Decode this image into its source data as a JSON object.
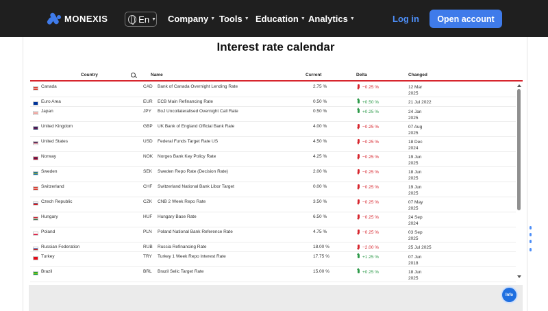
{
  "nav": {
    "brand": "MONEXIS",
    "lang": "En",
    "menu": [
      "Company",
      "Tools",
      "Education",
      "Analytics"
    ],
    "login": "Log in",
    "open_account": "Open account"
  },
  "page": {
    "title": "Interest rate calendar",
    "info": "Info"
  },
  "table": {
    "columns": {
      "country": "Country",
      "name": "Name",
      "current": "Current",
      "delta": "Delta",
      "changed": "Changed"
    },
    "rows": [
      {
        "country": "Canada",
        "code": "CAD",
        "name": "Bank of Canada Overnight Lending Rate",
        "current": "2.75 %",
        "delta": "−0.25 %",
        "dir": "down",
        "changed": [
          "12 Mar",
          "2025"
        ],
        "flag": [
          "#d52b1e",
          "#ffffff",
          "#d52b1e"
        ]
      },
      {
        "country": "Euro Area",
        "code": "EUR",
        "name": "ECB Main Refinancing Rate",
        "current": "0.50 %",
        "delta": "+0.50 %",
        "dir": "up",
        "changed": [
          "21 Jul 2022"
        ],
        "flag": [
          "#003399",
          "#003399",
          "#003399"
        ]
      },
      {
        "country": "Japan",
        "code": "JPY",
        "name": "BoJ Uncollateralised Overnight Call Rate",
        "current": "0.50 %",
        "delta": "+0.25 %",
        "dir": "up",
        "changed": [
          "24 Jan",
          "2025"
        ],
        "flag": [
          "#ffffff",
          "#d52b1e",
          "#ffffff"
        ]
      },
      {
        "country": "United Kingdom",
        "code": "GBP",
        "name": "UK Bank of England Official Bank Rate",
        "current": "4.00 %",
        "delta": "−0.25 %",
        "dir": "down",
        "changed": [
          "07 Aug",
          "2025"
        ],
        "flag": [
          "#012169",
          "#c8102e",
          "#012169"
        ]
      },
      {
        "country": "United States",
        "code": "USD",
        "name": "Federal Funds Target Rate US",
        "current": "4.50 %",
        "delta": "−0.25 %",
        "dir": "down",
        "changed": [
          "18 Dec",
          "2024"
        ],
        "flag": [
          "#3c3b6e",
          "#b22234",
          "#ffffff"
        ]
      },
      {
        "country": "Norway",
        "code": "NOK",
        "name": "Norges Bank Key Policy Rate",
        "current": "4.25 %",
        "delta": "−0.25 %",
        "dir": "down",
        "changed": [
          "19 Jun",
          "2025"
        ],
        "flag": [
          "#ba0c2f",
          "#00205b",
          "#ba0c2f"
        ]
      },
      {
        "country": "Sweden",
        "code": "SEK",
        "name": "Sweden Repo Rate (Decision Rate)",
        "current": "2.00 %",
        "delta": "−0.25 %",
        "dir": "down",
        "changed": [
          "18 Jun",
          "2025"
        ],
        "flag": [
          "#006aa7",
          "#fecc00",
          "#006aa7"
        ]
      },
      {
        "country": "Switzerland",
        "code": "CHF",
        "name": "Switzerland National Bank Libor Target",
        "current": "0.00 %",
        "delta": "−0.25 %",
        "dir": "down",
        "changed": [
          "19 Jun",
          "2025"
        ],
        "flag": [
          "#d52b1e",
          "#ffffff",
          "#d52b1e"
        ]
      },
      {
        "country": "Czech Republic",
        "code": "CZK",
        "name": "CNB 2 Week Repo Rate",
        "current": "3.50 %",
        "delta": "−0.25 %",
        "dir": "down",
        "changed": [
          "07 May",
          "2025"
        ],
        "flag": [
          "#ffffff",
          "#11457e",
          "#d7141a"
        ]
      },
      {
        "country": "Hungary",
        "code": "HUF",
        "name": "Hungary Base Rate",
        "current": "6.50 %",
        "delta": "−0.25 %",
        "dir": "down",
        "changed": [
          "24 Sep",
          "2024"
        ],
        "flag": [
          "#ce2939",
          "#ffffff",
          "#477050"
        ]
      },
      {
        "country": "Poland",
        "code": "PLN",
        "name": "Poland National Bank Reference Rate",
        "current": "4.75 %",
        "delta": "−0.25 %",
        "dir": "down",
        "changed": [
          "03 Sep",
          "2025"
        ],
        "flag": [
          "#ffffff",
          "#ffffff",
          "#dc143c"
        ]
      },
      {
        "country": "Russian Federation",
        "code": "RUB",
        "name": "Russia Refinancing Rate",
        "current": "18.00 %",
        "delta": "−2.00 %",
        "dir": "down",
        "changed": [
          "25 Jul 2025"
        ],
        "flag": [
          "#ffffff",
          "#0039a6",
          "#d52b1e"
        ]
      },
      {
        "country": "Turkey",
        "code": "TRY",
        "name": "Turkey 1 Week Repo Interest Rate",
        "current": "17.75 %",
        "delta": "+1.25 %",
        "dir": "up",
        "changed": [
          "07 Jun",
          "2018"
        ],
        "flag": [
          "#e30a17",
          "#e30a17",
          "#e30a17"
        ]
      },
      {
        "country": "Brazil",
        "code": "BRL",
        "name": "Brazil Selic Target Rate",
        "current": "15.00 %",
        "delta": "+0.25 %",
        "dir": "up",
        "changed": [
          "18 Jun",
          "2025"
        ],
        "flag": [
          "#009c3b",
          "#ffdf00",
          "#009c3b"
        ]
      }
    ]
  },
  "colors": {
    "accent": "#3f7bea",
    "nav_bg": "#1f1f1f",
    "negative": "#d7262e",
    "positive": "#2e9a4a",
    "header_line": "#d7262e"
  }
}
